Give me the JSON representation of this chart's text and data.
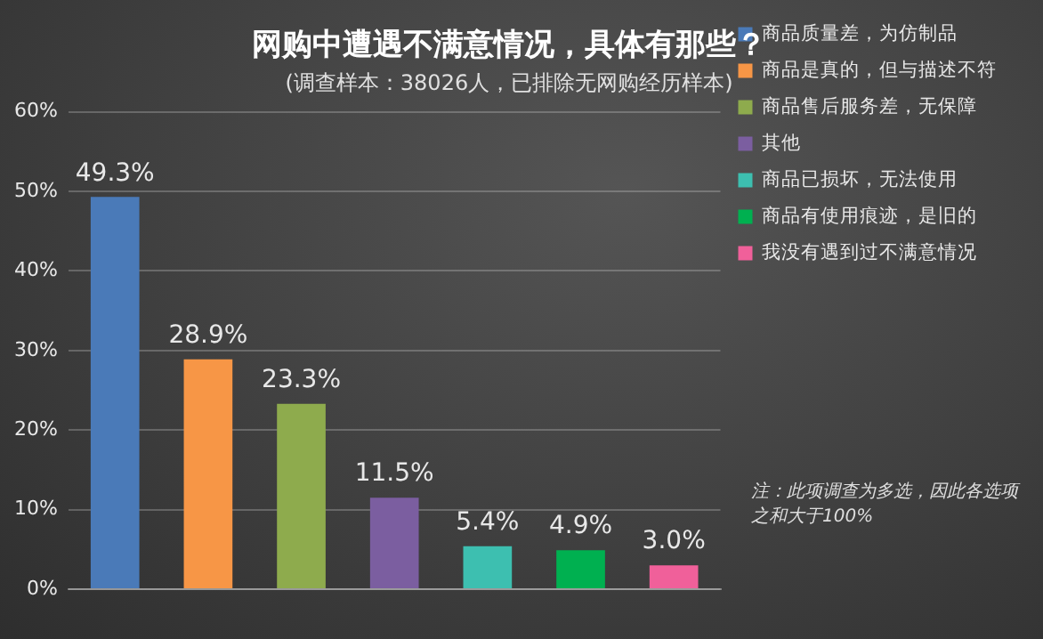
{
  "chart_data": {
    "type": "bar",
    "title": "网购中遭遇不满意情况，具体有那些？",
    "subtitle": "(调查样本：38026人，已排除无网购经历样本)",
    "categories": [
      null,
      null,
      null,
      null,
      null,
      null,
      null
    ],
    "series": [
      {
        "name": "商品质量差，为仿制品",
        "color": "#4a7ab8",
        "values": [
          49.3,
          null,
          null,
          null,
          null,
          null,
          null
        ],
        "value_labels": [
          "49.3%",
          null,
          null,
          null,
          null,
          null,
          null
        ]
      },
      {
        "name": "商品是真的，但与描述不符",
        "color": "#f79646",
        "values": [
          null,
          28.9,
          null,
          null,
          null,
          null,
          null
        ],
        "value_labels": [
          null,
          "28.9%",
          null,
          null,
          null,
          null,
          null
        ]
      },
      {
        "name": "商品售后服务差，无保障",
        "color": "#8eab4d",
        "values": [
          null,
          null,
          23.3,
          null,
          null,
          null,
          null
        ],
        "value_labels": [
          null,
          null,
          "23.3%",
          null,
          null,
          null,
          null
        ]
      },
      {
        "name": "其他",
        "color": "#7b5ea0",
        "values": [
          null,
          null,
          null,
          11.5,
          null,
          null,
          null
        ],
        "value_labels": [
          null,
          null,
          null,
          "11.5%",
          null,
          null,
          null
        ]
      },
      {
        "name": "商品已损坏，无法使用",
        "color": "#3dbfb0",
        "values": [
          null,
          null,
          null,
          null,
          5.4,
          null,
          null
        ],
        "value_labels": [
          null,
          null,
          null,
          null,
          "5.4%",
          null,
          null
        ]
      },
      {
        "name": "商品有使用痕迹，是旧的",
        "color": "#00b050",
        "values": [
          null,
          null,
          null,
          null,
          null,
          4.9,
          null
        ],
        "value_labels": [
          null,
          null,
          null,
          null,
          null,
          "4.9%",
          null
        ]
      },
      {
        "name": "我没有遇到过不满意情况",
        "color": "#f0609a",
        "values": [
          null,
          null,
          null,
          null,
          null,
          null,
          3.0
        ],
        "value_labels": [
          null,
          null,
          null,
          null,
          null,
          null,
          "3.0%"
        ]
      }
    ],
    "ylim": [
      0,
      60
    ],
    "yticks": [
      {
        "value": 0,
        "label": "0%"
      },
      {
        "value": 10,
        "label": "10%"
      },
      {
        "value": 20,
        "label": "20%"
      },
      {
        "value": 30,
        "label": "30%"
      },
      {
        "value": 40,
        "label": "40%"
      },
      {
        "value": 50,
        "label": "50%"
      },
      {
        "value": 60,
        "label": "60%"
      }
    ],
    "grid": "y",
    "legend": "right",
    "tick_labels": "y",
    "annotations": [
      "注：此项调查为多选，因此各选项之和大于100%"
    ]
  }
}
